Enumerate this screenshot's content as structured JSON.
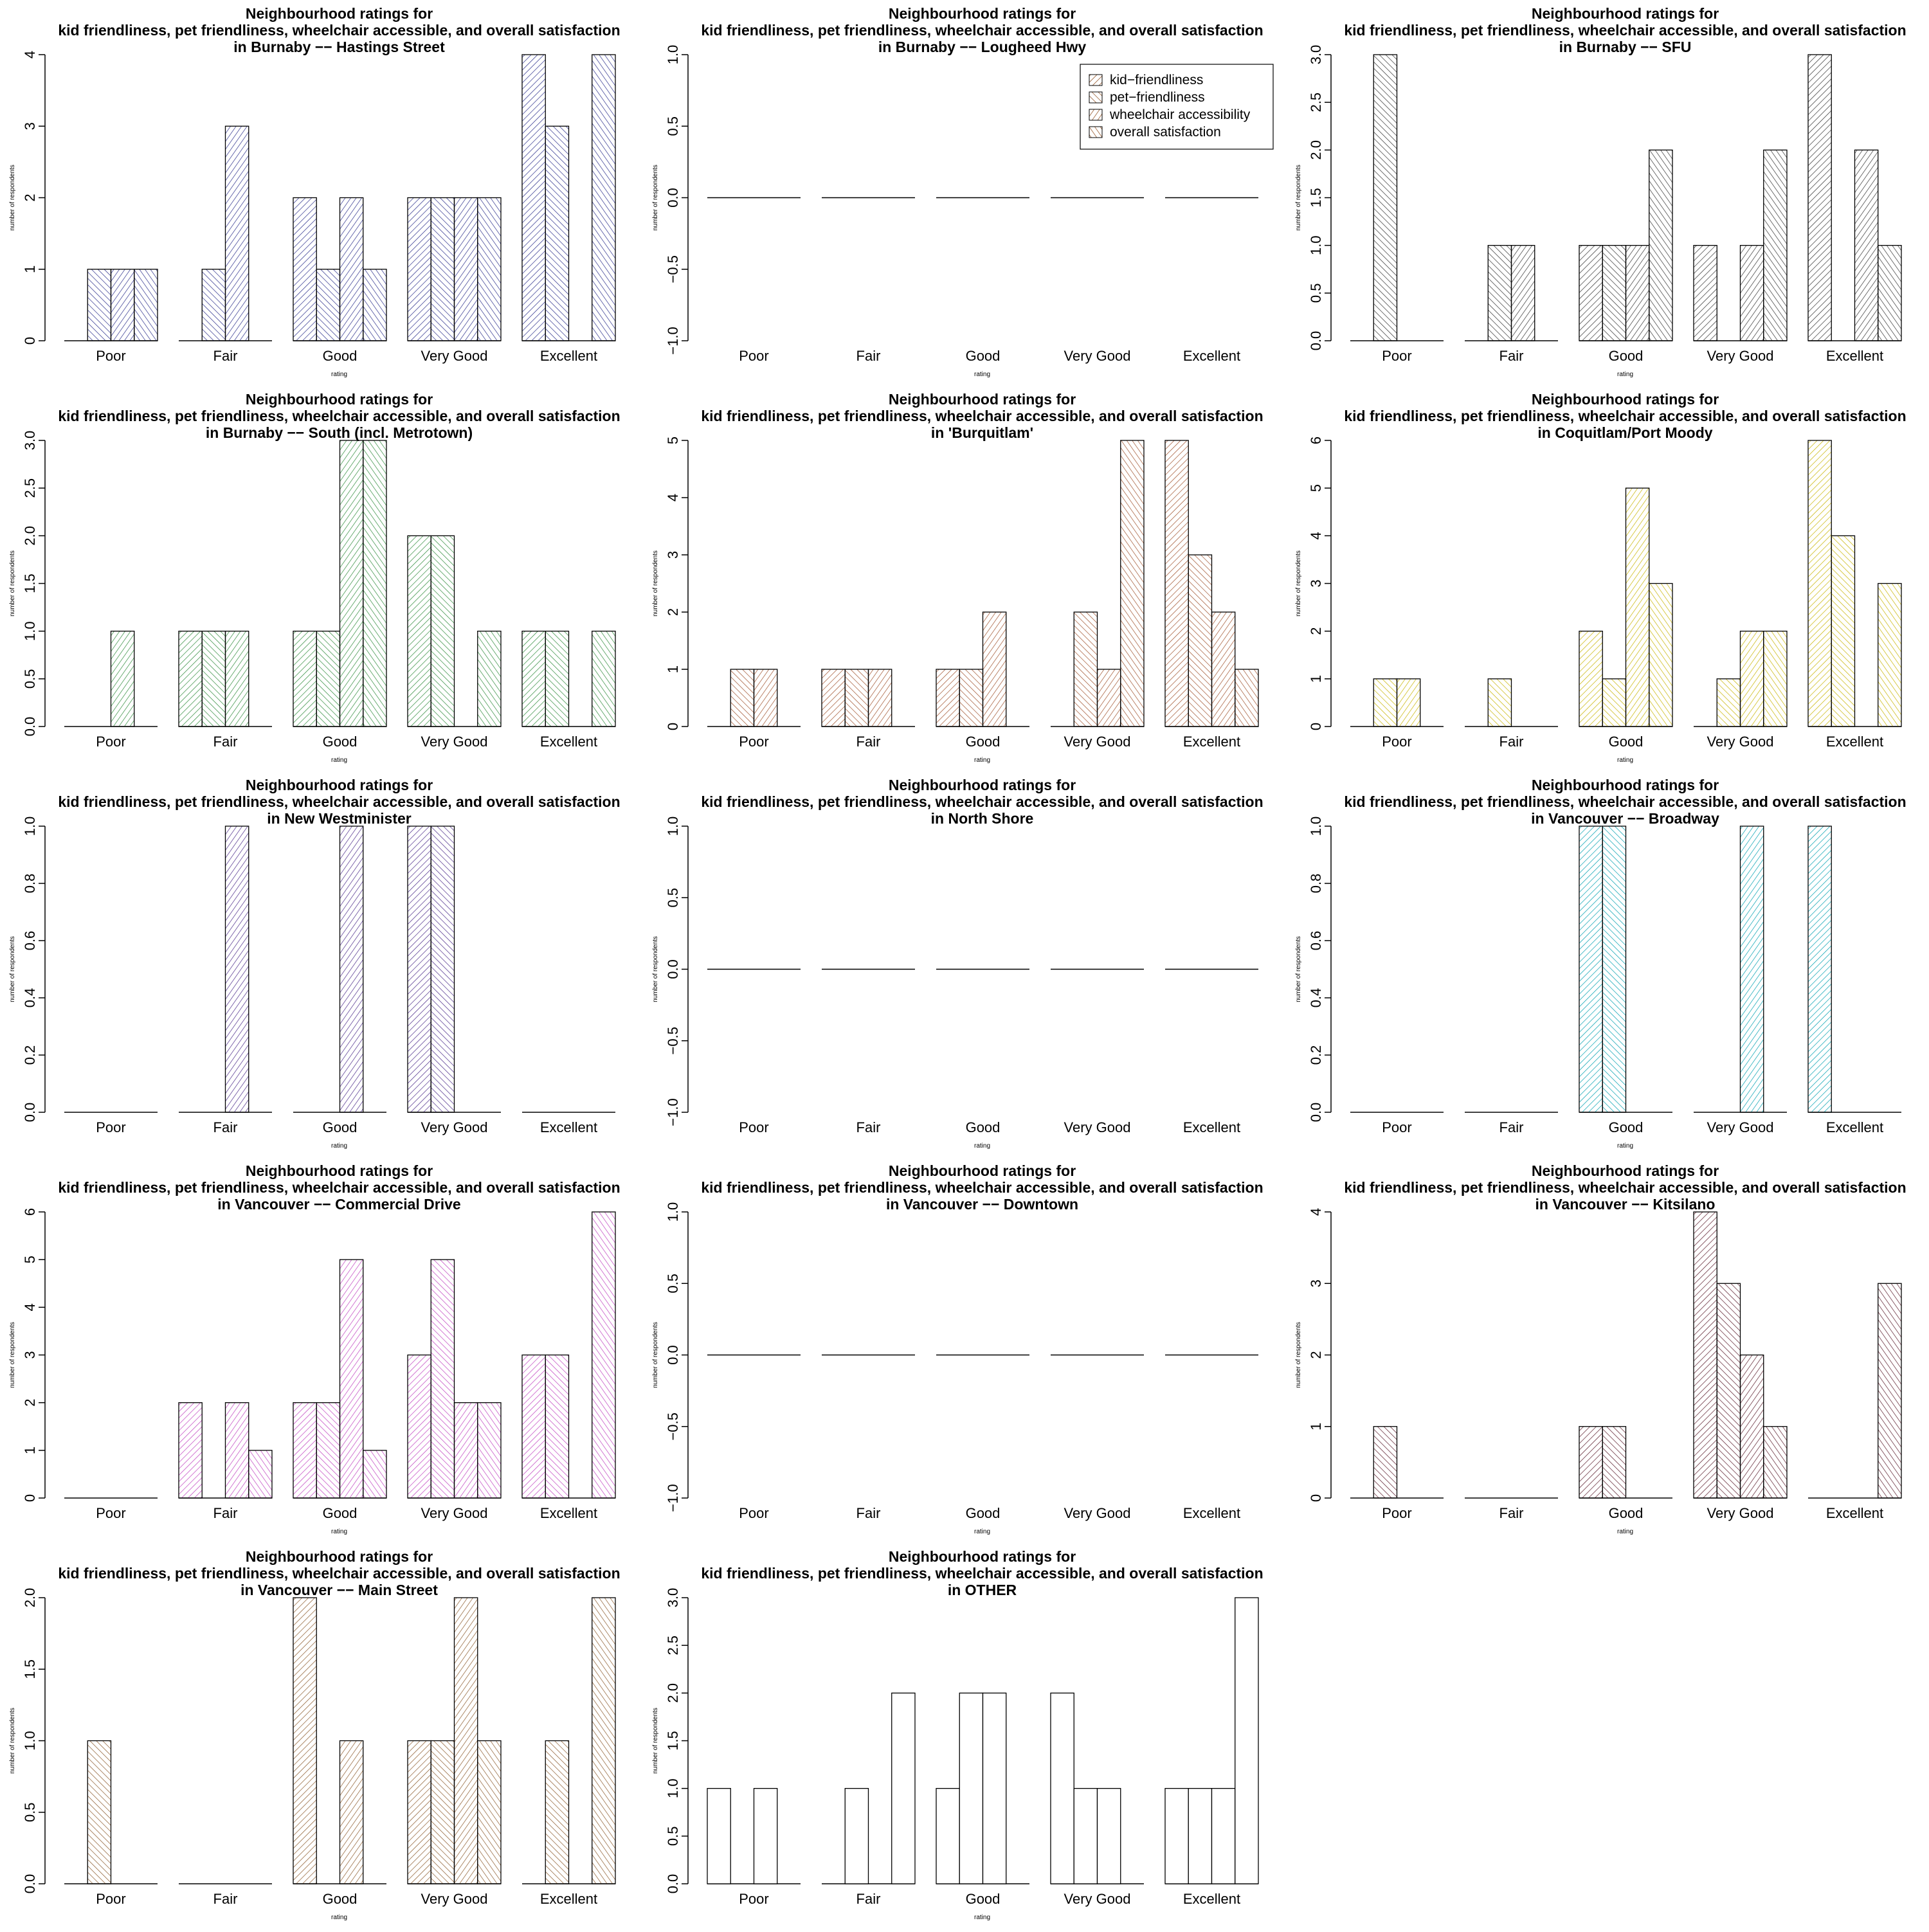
{
  "chart_data": {
    "type": "bar",
    "layout": "small-multiples",
    "xlabel": "rating",
    "ylabel": "number of respondents",
    "title_line1": "Neighbourhood ratings for",
    "title_line2": "kid friendliness, pet friendliness, wheelchair accessible, and overall satisfaction",
    "categories": [
      "Poor",
      "Fair",
      "Good",
      "Very Good",
      "Excellent"
    ],
    "legend": [
      "kid−friendliness",
      "pet−friendliness",
      "wheelchair accessibility",
      "overall satisfaction"
    ],
    "panels": [
      {
        "subtitle": "in Burnaby −− Hastings Street",
        "color": "#2b2f8c",
        "ylim": [
          0,
          4
        ],
        "ticks": [
          "0",
          "1",
          "2",
          "3",
          "4"
        ],
        "series": [
          [
            0,
            0,
            2,
            2,
            4
          ],
          [
            1,
            1,
            1,
            2,
            3
          ],
          [
            1,
            3,
            2,
            2,
            0
          ],
          [
            1,
            0,
            1,
            2,
            4
          ]
        ]
      },
      {
        "subtitle": "in Burnaby −− Lougheed Hwy",
        "color": "#8b4513",
        "ylim": [
          -1,
          1
        ],
        "ticks": [
          "−1.0",
          "−0.5",
          "0.0",
          "0.5",
          "1.0"
        ],
        "series": [
          [
            0,
            0,
            0,
            0,
            0
          ],
          [
            0,
            0,
            0,
            0,
            0
          ],
          [
            0,
            0,
            0,
            0,
            0
          ],
          [
            0,
            0,
            0,
            0,
            0
          ]
        ],
        "show_legend": true
      },
      {
        "subtitle": "in Burnaby −− SFU",
        "color": "#333333",
        "ylim": [
          0,
          3
        ],
        "ticks": [
          "0.0",
          "0.5",
          "1.0",
          "1.5",
          "2.0",
          "2.5",
          "3.0"
        ],
        "series": [
          [
            0,
            0,
            1,
            1,
            3
          ],
          [
            3,
            1,
            1,
            0,
            0
          ],
          [
            0,
            1,
            1,
            1,
            2
          ],
          [
            0,
            0,
            2,
            2,
            1
          ]
        ]
      },
      {
        "subtitle": "in Burnaby −− South (incl. Metrotown)",
        "color": "#2e8b3a",
        "ylim": [
          0,
          3
        ],
        "ticks": [
          "0.0",
          "0.5",
          "1.0",
          "1.5",
          "2.0",
          "2.5",
          "3.0"
        ],
        "series": [
          [
            0,
            1,
            1,
            2,
            1
          ],
          [
            0,
            1,
            1,
            2,
            1
          ],
          [
            1,
            1,
            3,
            0,
            0
          ],
          [
            0,
            0,
            3,
            1,
            1
          ]
        ]
      },
      {
        "subtitle": "in 'Burquitlam'",
        "color": "#a0522d",
        "ylim": [
          0,
          5
        ],
        "ticks": [
          "0",
          "1",
          "2",
          "3",
          "4",
          "5"
        ],
        "series": [
          [
            0,
            1,
            1,
            0,
            5
          ],
          [
            1,
            1,
            1,
            2,
            3
          ],
          [
            1,
            1,
            2,
            1,
            2
          ],
          [
            0,
            0,
            0,
            5,
            1
          ]
        ]
      },
      {
        "subtitle": "in Coquitlam/Port Moody",
        "color": "#c8b400",
        "ylim": [
          0,
          6
        ],
        "ticks": [
          "0",
          "1",
          "2",
          "3",
          "4",
          "5",
          "6"
        ],
        "series": [
          [
            0,
            0,
            2,
            0,
            6
          ],
          [
            1,
            1,
            1,
            1,
            4
          ],
          [
            1,
            0,
            5,
            2,
            0
          ],
          [
            0,
            0,
            3,
            2,
            3
          ]
        ]
      },
      {
        "subtitle": "in New Westminister",
        "color": "#4b2a8a",
        "ylim": [
          0,
          1
        ],
        "ticks": [
          "0.0",
          "0.2",
          "0.4",
          "0.6",
          "0.8",
          "1.0"
        ],
        "series": [
          [
            0,
            0,
            0,
            1,
            0
          ],
          [
            0,
            0,
            0,
            1,
            0
          ],
          [
            0,
            1,
            1,
            0,
            0
          ],
          [
            0,
            0,
            0,
            0,
            0
          ]
        ]
      },
      {
        "subtitle": "in North Shore",
        "color": "#333333",
        "ylim": [
          -1,
          1
        ],
        "ticks": [
          "−1.0",
          "−0.5",
          "0.0",
          "0.5",
          "1.0"
        ],
        "series": [
          [
            0,
            0,
            0,
            0,
            0
          ],
          [
            0,
            0,
            0,
            0,
            0
          ],
          [
            0,
            0,
            0,
            0,
            0
          ],
          [
            0,
            0,
            0,
            0,
            0
          ]
        ]
      },
      {
        "subtitle": "in Vancouver −− Broadway",
        "color": "#00a0b0",
        "ylim": [
          0,
          1
        ],
        "ticks": [
          "0.0",
          "0.2",
          "0.4",
          "0.6",
          "0.8",
          "1.0"
        ],
        "series": [
          [
            0,
            0,
            1,
            0,
            1
          ],
          [
            0,
            0,
            1,
            0,
            0
          ],
          [
            0,
            0,
            0,
            1,
            0
          ],
          [
            0,
            0,
            0,
            0,
            0
          ]
        ]
      },
      {
        "subtitle": "in Vancouver −− Commercial Drive",
        "color": "#c040c0",
        "ylim": [
          0,
          6
        ],
        "ticks": [
          "0",
          "1",
          "2",
          "3",
          "4",
          "5",
          "6"
        ],
        "series": [
          [
            0,
            2,
            2,
            3,
            3
          ],
          [
            0,
            0,
            2,
            5,
            3
          ],
          [
            0,
            2,
            5,
            2,
            0
          ],
          [
            0,
            1,
            1,
            2,
            6
          ]
        ]
      },
      {
        "subtitle": "in Vancouver −− Downtown",
        "color": "#333333",
        "ylim": [
          -1,
          1
        ],
        "ticks": [
          "−1.0",
          "−0.5",
          "0.0",
          "0.5",
          "1.0"
        ],
        "series": [
          [
            0,
            0,
            0,
            0,
            0
          ],
          [
            0,
            0,
            0,
            0,
            0
          ],
          [
            0,
            0,
            0,
            0,
            0
          ],
          [
            0,
            0,
            0,
            0,
            0
          ]
        ]
      },
      {
        "subtitle": "in Vancouver −− Kitsilano",
        "color": "#5a1a2a",
        "ylim": [
          0,
          4
        ],
        "ticks": [
          "0",
          "1",
          "2",
          "3",
          "4"
        ],
        "series": [
          [
            0,
            0,
            1,
            4,
            0
          ],
          [
            1,
            0,
            1,
            3,
            0
          ],
          [
            0,
            0,
            0,
            2,
            0
          ],
          [
            0,
            0,
            0,
            1,
            3
          ]
        ]
      },
      {
        "subtitle": "in Vancouver −− Main Street",
        "color": "#8b5a2b",
        "ylim": [
          0,
          2
        ],
        "ticks": [
          "0.0",
          "0.5",
          "1.0",
          "1.5",
          "2.0"
        ],
        "series": [
          [
            0,
            0,
            2,
            1,
            0
          ],
          [
            1,
            0,
            0,
            1,
            1
          ],
          [
            0,
            0,
            1,
            2,
            0
          ],
          [
            0,
            0,
            0,
            1,
            2
          ]
        ]
      },
      {
        "subtitle": "in OTHER",
        "color": "#333333",
        "ylim": [
          0,
          3
        ],
        "ticks": [
          "0.0",
          "0.5",
          "1.0",
          "1.5",
          "2.0",
          "2.5",
          "3.0"
        ],
        "series": [
          [
            1,
            0,
            1,
            2,
            1
          ],
          [
            0,
            1,
            2,
            1,
            1
          ],
          [
            1,
            0,
            2,
            1,
            1
          ],
          [
            0,
            2,
            0,
            0,
            3
          ]
        ],
        "hollow": true
      }
    ]
  }
}
